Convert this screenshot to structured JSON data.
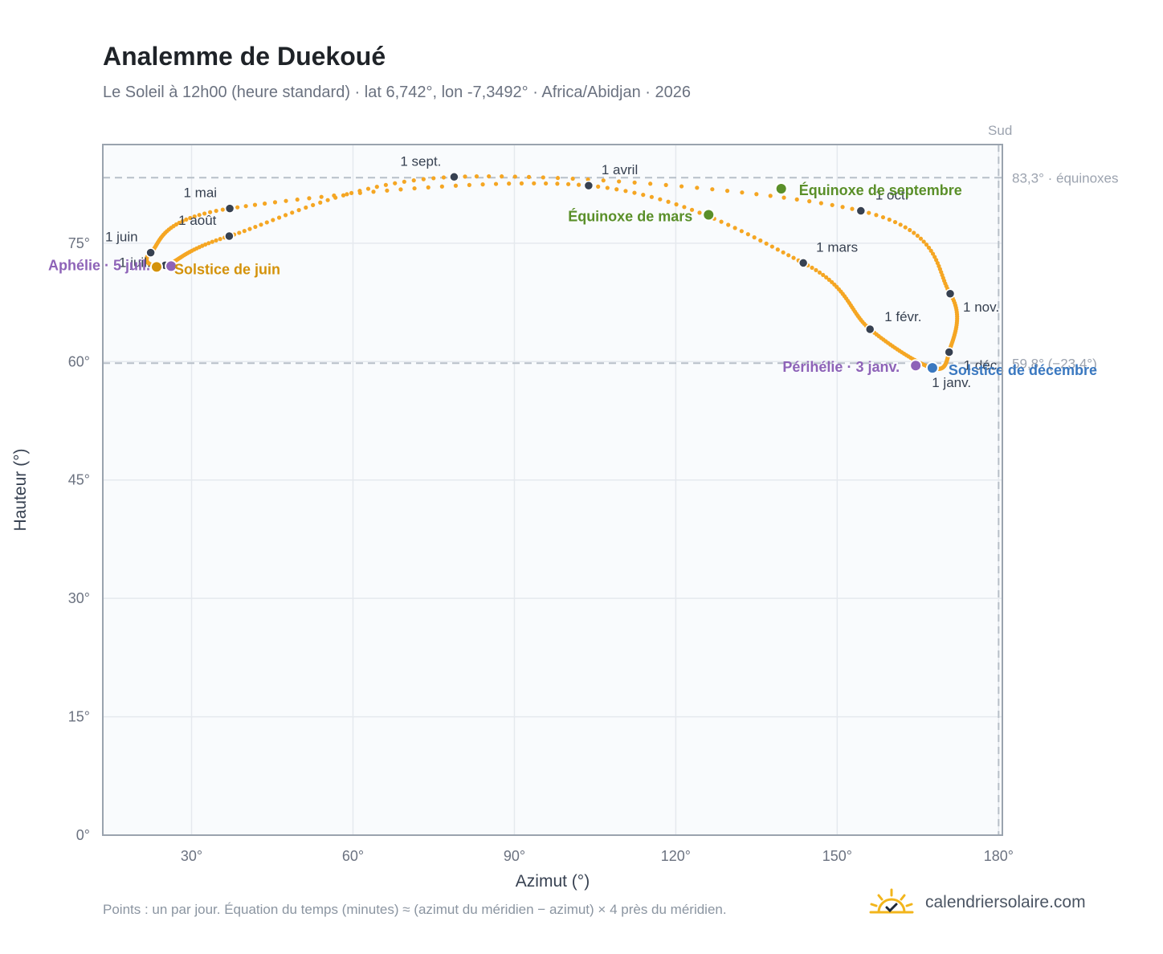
{
  "header": {
    "title": "Analemme de Duekoué",
    "subtitle": "Le Soleil à 12h00 (heure standard) · lat 6,742°, lon -7,3492° · Africa/Abidjan · 2026"
  },
  "footer": {
    "note": "Points : un par jour. Équation du temps (minutes) ≈ (azimut du méridien − azimut) × 4 près du méridien.",
    "brand": "calendriersolaire.com"
  },
  "colors": {
    "curve": "#f5a623",
    "month_marker": "#374151",
    "equinox": "#5a8f29",
    "june_solstice": "#d4920a",
    "december_solstice": "#3a78c0",
    "apsis": "#8e63b8",
    "plot_bg": "#f9fbfd",
    "grid": "#e5e9ee",
    "frame": "#9aa3ae",
    "ref_line": "#b8c0c9"
  },
  "chart_data": {
    "type": "scatter",
    "title": "Analemme de Duekoué",
    "xlabel": "Azimut (°)",
    "ylabel": "Hauteur (°)",
    "xlim": [
      13.5,
      180.7
    ],
    "ylim": [
      0,
      87.5
    ],
    "x_ticks": [
      30,
      60,
      90,
      120,
      150,
      180
    ],
    "x_tick_labels": [
      "30°",
      "60°",
      "90°",
      "120°",
      "150°",
      "180°"
    ],
    "y_ticks": [
      0,
      15,
      30,
      45,
      60,
      75
    ],
    "y_tick_labels": [
      "0°",
      "15°",
      "30°",
      "45°",
      "60°",
      "75°"
    ],
    "grid": true,
    "series_note": "one point per day",
    "month_markers": [
      {
        "label": "1 janv.",
        "az": 167.6,
        "alt": 59.2
      },
      {
        "label": "1 févr.",
        "az": 156.1,
        "alt": 64.1
      },
      {
        "label": "1 mars",
        "az": 143.7,
        "alt": 72.5
      },
      {
        "label": "1 avril",
        "az": 103.8,
        "alt": 82.3
      },
      {
        "label": "1 mai",
        "az": 37.1,
        "alt": 79.4
      },
      {
        "label": "1 juin",
        "az": 22.4,
        "alt": 73.8
      },
      {
        "label": "1 juil.",
        "az": 25.1,
        "alt": 72.2
      },
      {
        "label": "1 août",
        "az": 37.0,
        "alt": 75.9
      },
      {
        "label": "1 sept.",
        "az": 78.8,
        "alt": 83.4
      },
      {
        "label": "1 oct.",
        "az": 154.4,
        "alt": 79.1
      },
      {
        "label": "1 nov.",
        "az": 171.0,
        "alt": 68.6
      },
      {
        "label": "1 déc.",
        "az": 170.8,
        "alt": 61.2
      }
    ],
    "events": [
      {
        "label": "Équinoxe de mars",
        "az": 126.1,
        "alt": 78.6,
        "kind": "equinox"
      },
      {
        "label": "Équinoxe de septembre",
        "az": 139.6,
        "alt": 81.9,
        "kind": "equinox"
      },
      {
        "label": "Solstice de juin",
        "az": 23.5,
        "alt": 72.0,
        "kind": "june_solstice"
      },
      {
        "label": "Solstice de décembre",
        "az": 167.7,
        "alt": 59.2,
        "kind": "december_solstice"
      },
      {
        "label": "Aphélie · 5 juil.",
        "az": 26.2,
        "alt": 72.1,
        "kind": "apsis"
      },
      {
        "label": "Périhélie · 3 janv.",
        "az": 164.6,
        "alt": 59.5,
        "kind": "apsis"
      }
    ],
    "reference_lines": [
      {
        "orientation": "horizontal",
        "value": 83.3,
        "label": "83,3° · équinoxes"
      },
      {
        "orientation": "horizontal",
        "value": 59.8,
        "label": "59,8° (−23,4°)"
      },
      {
        "orientation": "vertical",
        "value": 180,
        "label": "Sud"
      }
    ]
  }
}
